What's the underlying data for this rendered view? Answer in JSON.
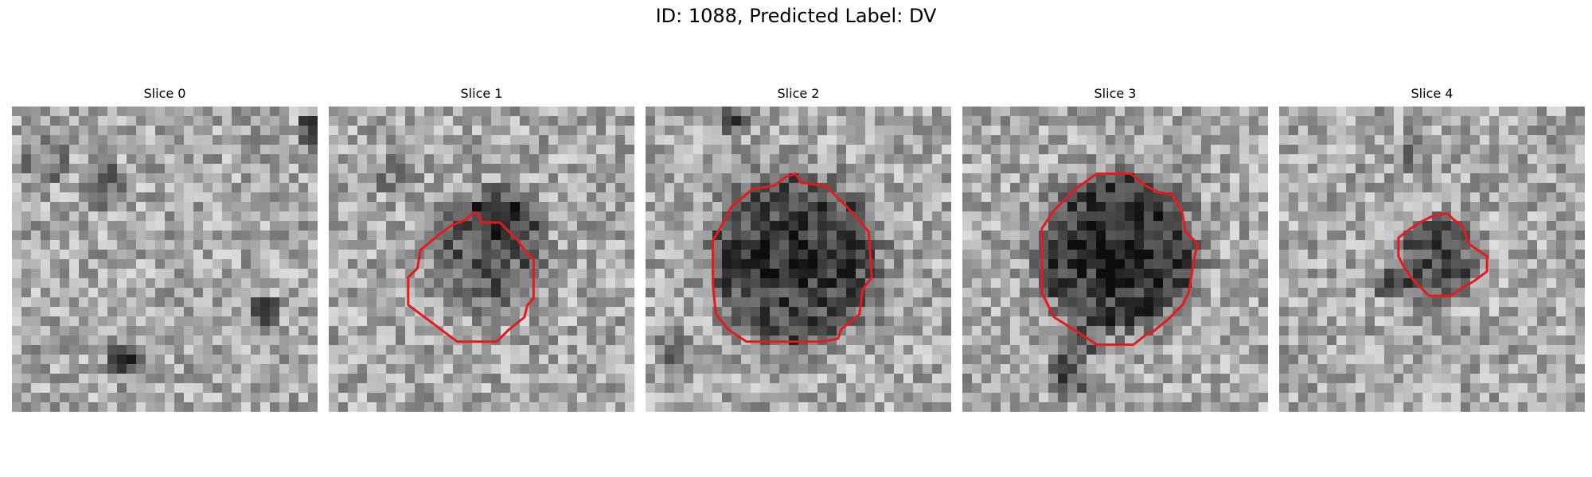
{
  "figure": {
    "title": "ID: 1088, Predicted Label: DV"
  },
  "panels": [
    {
      "title": "Slice 0",
      "has_contour": false,
      "contour_color": "#e41a1c",
      "seed": 11,
      "blobs": [
        {
          "c": 0.29,
          "r": 0.25,
          "rad": 0.07,
          "s": 0.35
        },
        {
          "c": 0.1,
          "r": 0.17,
          "rad": 0.08,
          "s": 0.2
        },
        {
          "c": 0.82,
          "r": 0.67,
          "rad": 0.05,
          "s": 0.4
        },
        {
          "c": 0.38,
          "r": 0.83,
          "rad": 0.06,
          "s": 0.45
        },
        {
          "c": 0.98,
          "r": 0.08,
          "rad": 0.05,
          "s": 0.45
        }
      ],
      "contour": []
    },
    {
      "title": "Slice 1",
      "has_contour": true,
      "contour_color": "#e41a1c",
      "seed": 23,
      "blobs": [
        {
          "c": 0.52,
          "r": 0.48,
          "rad": 0.18,
          "s": 0.35
        },
        {
          "c": 0.58,
          "r": 0.35,
          "rad": 0.1,
          "s": 0.25
        },
        {
          "c": 0.22,
          "r": 0.22,
          "rad": 0.07,
          "s": 0.15
        }
      ],
      "contour": [
        [
          0.45,
          0.37
        ],
        [
          0.47,
          0.35
        ],
        [
          0.49,
          0.35
        ],
        [
          0.5,
          0.38
        ],
        [
          0.56,
          0.38
        ],
        [
          0.62,
          0.44
        ],
        [
          0.64,
          0.47
        ],
        [
          0.67,
          0.5
        ],
        [
          0.67,
          0.63
        ],
        [
          0.65,
          0.65
        ],
        [
          0.64,
          0.69
        ],
        [
          0.59,
          0.73
        ],
        [
          0.55,
          0.77
        ],
        [
          0.42,
          0.77
        ],
        [
          0.38,
          0.74
        ],
        [
          0.34,
          0.71
        ],
        [
          0.26,
          0.65
        ],
        [
          0.26,
          0.56
        ],
        [
          0.29,
          0.53
        ],
        [
          0.3,
          0.47
        ],
        [
          0.36,
          0.42
        ],
        [
          0.4,
          0.39
        ]
      ]
    },
    {
      "title": "Slice 2",
      "has_contour": true,
      "contour_color": "#e41a1c",
      "seed": 37,
      "blobs": [
        {
          "c": 0.49,
          "r": 0.5,
          "rad": 0.27,
          "s": 0.5
        },
        {
          "c": 0.28,
          "r": 0.05,
          "rad": 0.05,
          "s": 0.35
        },
        {
          "c": 0.1,
          "r": 0.8,
          "rad": 0.06,
          "s": 0.25
        }
      ],
      "contour": [
        [
          0.46,
          0.23
        ],
        [
          0.49,
          0.22
        ],
        [
          0.51,
          0.25
        ],
        [
          0.59,
          0.26
        ],
        [
          0.66,
          0.33
        ],
        [
          0.73,
          0.41
        ],
        [
          0.74,
          0.56
        ],
        [
          0.71,
          0.6
        ],
        [
          0.7,
          0.68
        ],
        [
          0.64,
          0.73
        ],
        [
          0.63,
          0.76
        ],
        [
          0.58,
          0.77
        ],
        [
          0.33,
          0.77
        ],
        [
          0.27,
          0.73
        ],
        [
          0.23,
          0.68
        ],
        [
          0.22,
          0.58
        ],
        [
          0.22,
          0.44
        ],
        [
          0.26,
          0.37
        ],
        [
          0.28,
          0.33
        ],
        [
          0.35,
          0.27
        ],
        [
          0.42,
          0.26
        ]
      ]
    },
    {
      "title": "Slice 3",
      "has_contour": true,
      "contour_color": "#e41a1c",
      "seed": 53,
      "blobs": [
        {
          "c": 0.51,
          "r": 0.48,
          "rad": 0.25,
          "s": 0.55
        },
        {
          "c": 0.35,
          "r": 0.88,
          "rad": 0.07,
          "s": 0.35
        },
        {
          "c": 0.38,
          "r": 0.78,
          "rad": 0.05,
          "s": 0.3
        }
      ],
      "contour": [
        [
          0.44,
          0.22
        ],
        [
          0.55,
          0.22
        ],
        [
          0.6,
          0.26
        ],
        [
          0.64,
          0.28
        ],
        [
          0.69,
          0.29
        ],
        [
          0.72,
          0.35
        ],
        [
          0.73,
          0.41
        ],
        [
          0.77,
          0.45
        ],
        [
          0.76,
          0.49
        ],
        [
          0.75,
          0.55
        ],
        [
          0.74,
          0.61
        ],
        [
          0.72,
          0.65
        ],
        [
          0.67,
          0.7
        ],
        [
          0.62,
          0.74
        ],
        [
          0.61,
          0.74
        ],
        [
          0.56,
          0.78
        ],
        [
          0.44,
          0.78
        ],
        [
          0.38,
          0.74
        ],
        [
          0.3,
          0.69
        ],
        [
          0.26,
          0.61
        ],
        [
          0.26,
          0.4
        ],
        [
          0.3,
          0.34
        ],
        [
          0.37,
          0.27
        ]
      ]
    },
    {
      "title": "Slice 4",
      "has_contour": true,
      "contour_color": "#e41a1c",
      "seed": 71,
      "blobs": [
        {
          "c": 0.52,
          "r": 0.5,
          "rad": 0.13,
          "s": 0.4
        },
        {
          "c": 0.45,
          "r": 0.15,
          "rad": 0.06,
          "s": 0.2
        },
        {
          "c": 0.36,
          "r": 0.58,
          "rad": 0.05,
          "s": 0.3
        }
      ],
      "contour": [
        [
          0.5,
          0.36
        ],
        [
          0.55,
          0.35
        ],
        [
          0.57,
          0.37
        ],
        [
          0.6,
          0.39
        ],
        [
          0.62,
          0.45
        ],
        [
          0.68,
          0.49
        ],
        [
          0.68,
          0.54
        ],
        [
          0.64,
          0.57
        ],
        [
          0.59,
          0.6
        ],
        [
          0.56,
          0.62
        ],
        [
          0.49,
          0.62
        ],
        [
          0.44,
          0.57
        ],
        [
          0.41,
          0.53
        ],
        [
          0.39,
          0.49
        ],
        [
          0.39,
          0.43
        ],
        [
          0.43,
          0.4
        ],
        [
          0.46,
          0.38
        ]
      ]
    }
  ]
}
